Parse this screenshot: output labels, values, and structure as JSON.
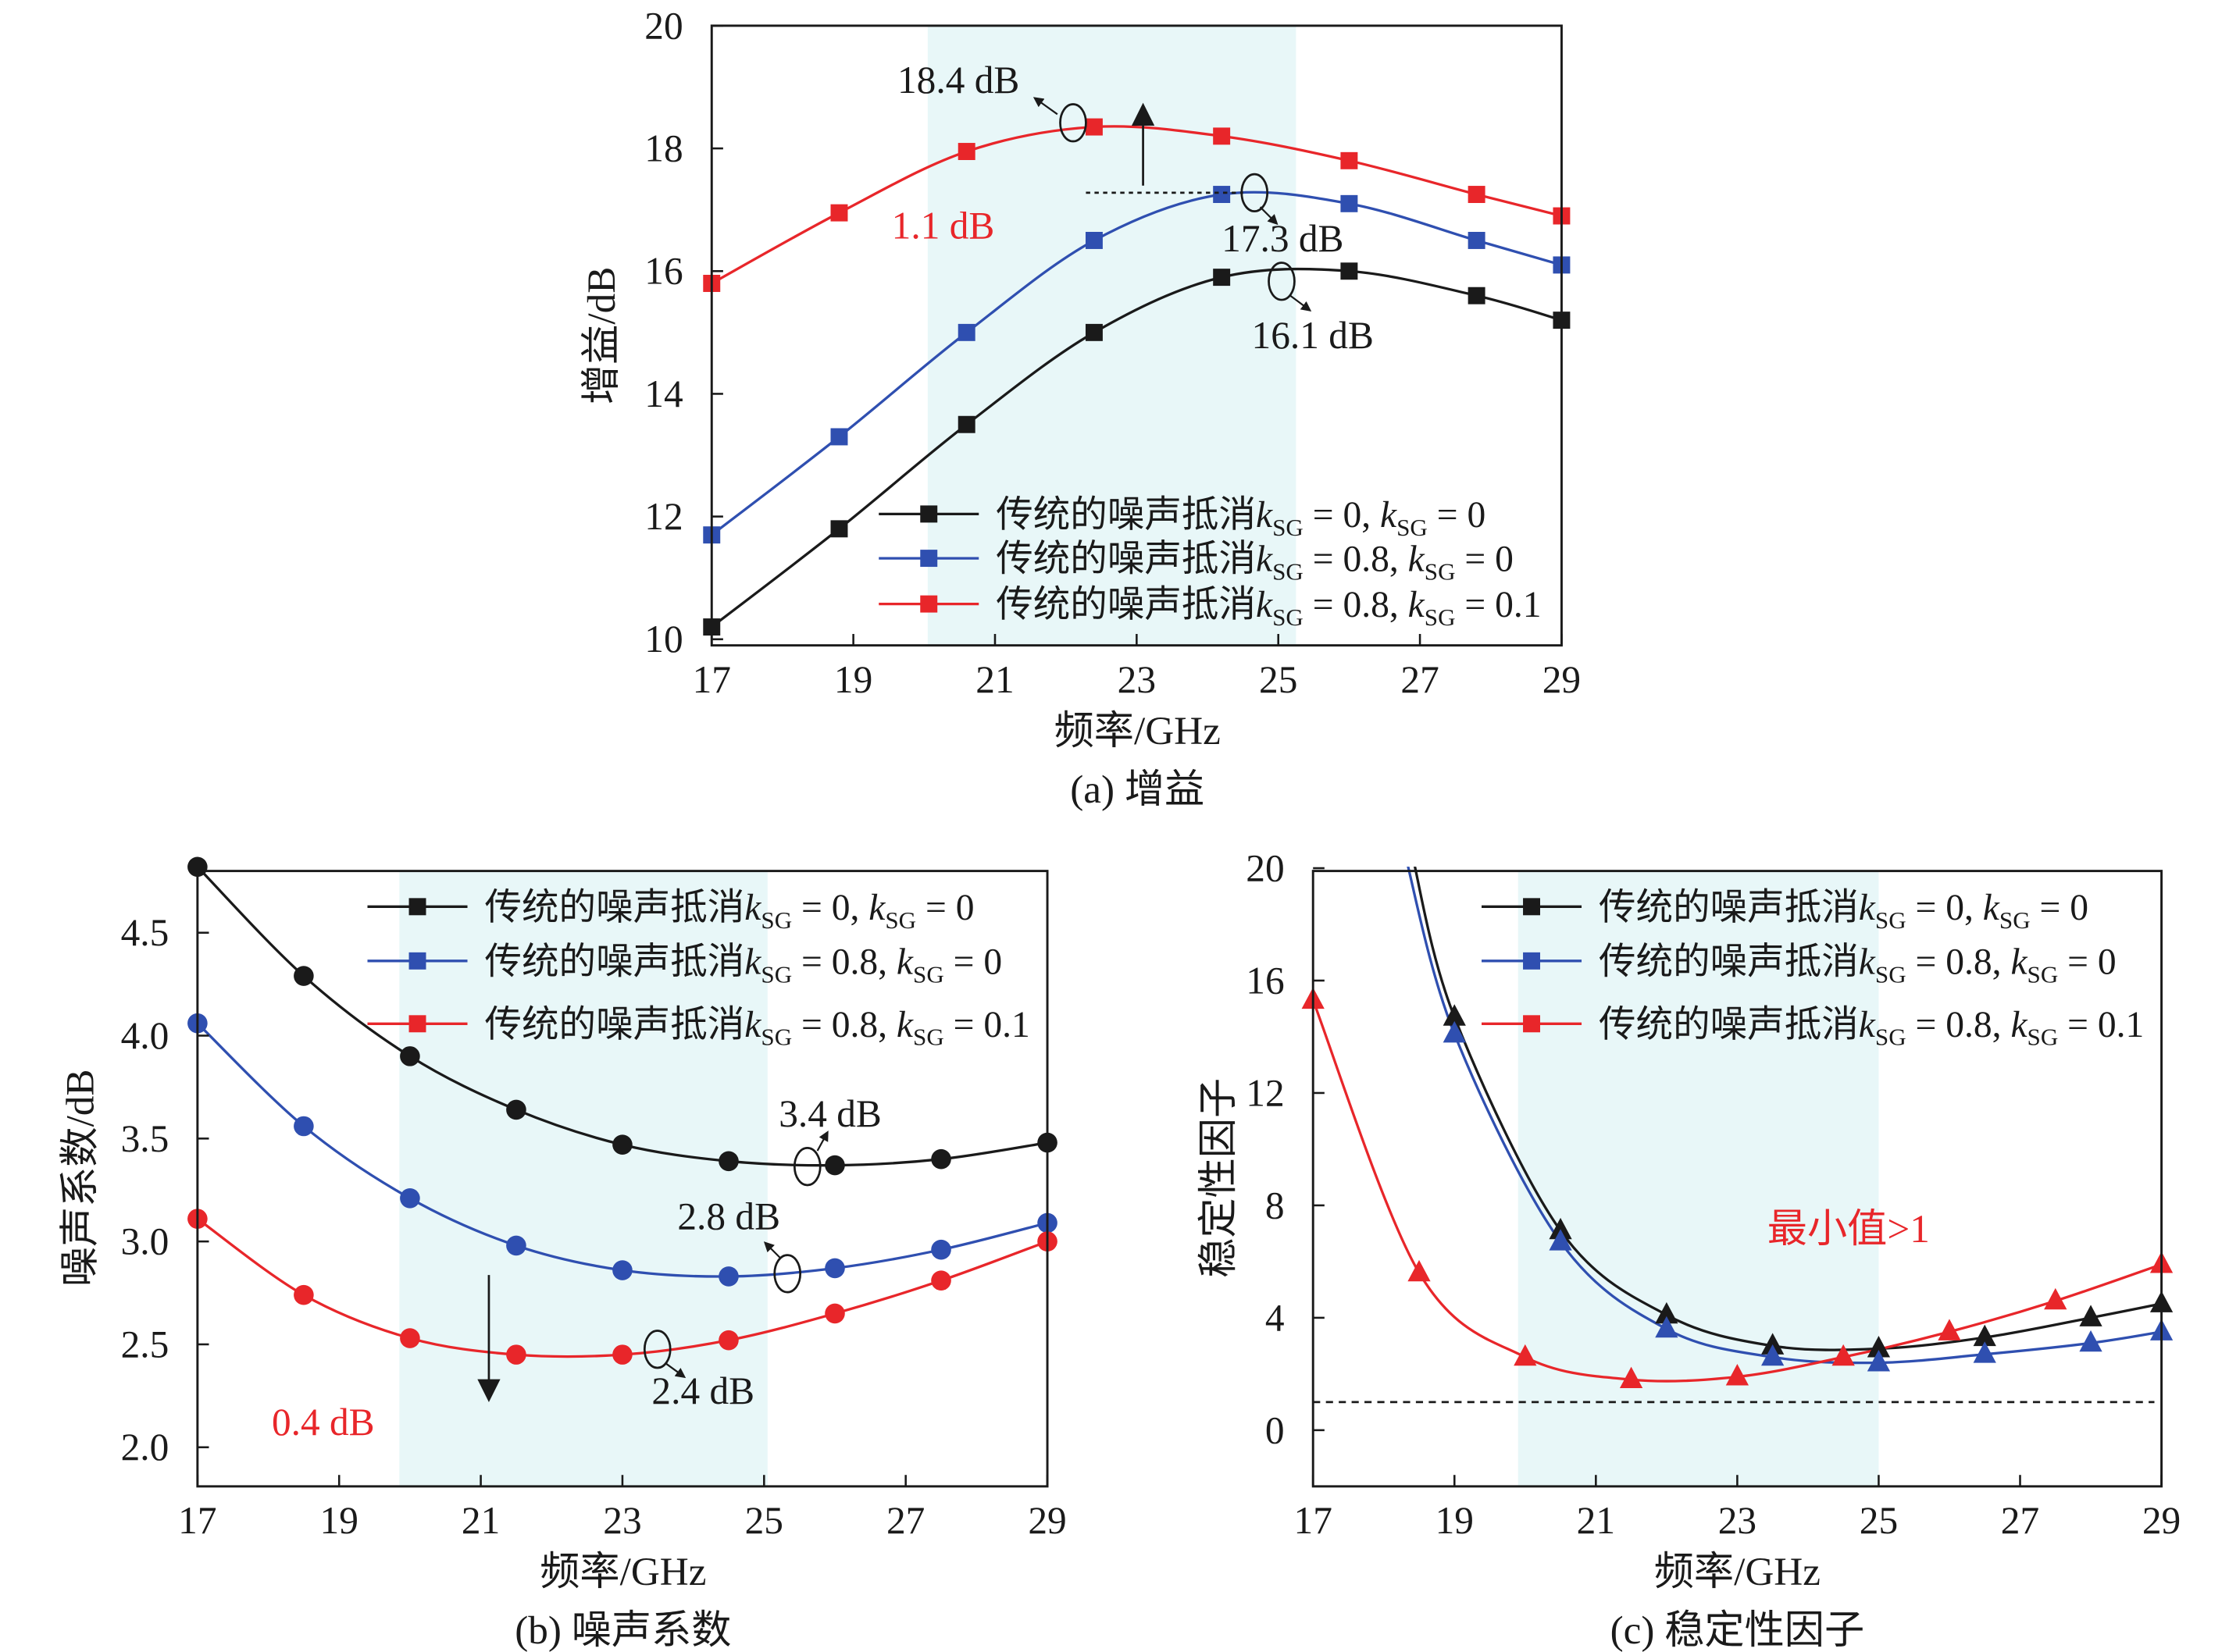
{
  "colors": {
    "black": "#1a1a1a",
    "blue": "#2f4fb0",
    "red": "#e8262a",
    "band": "#e8f7f8"
  },
  "legend": [
    {
      "prefix": "传统的噪声抵消",
      "k": "k",
      "sub": "SG",
      "v1": " = 0, ",
      "v2": " = 0"
    },
    {
      "prefix": "传统的噪声抵消",
      "k": "k",
      "sub": "SG",
      "v1": " = 0.8, ",
      "v2": " = 0"
    },
    {
      "prefix": "传统的噪声抵消",
      "k": "k",
      "sub": "SG",
      "v1": " = 0.8, ",
      "v2": " = 0.1"
    }
  ],
  "chart_data": [
    {
      "type": "line",
      "caption": "(a) 增益",
      "xlabel": "频率/GHz",
      "ylabel": "增益/dB",
      "xlim": [
        17,
        29
      ],
      "ylim": [
        9.9,
        20
      ],
      "xticks": [
        "17",
        "19",
        "21",
        "23",
        "25",
        "27",
        "29"
      ],
      "yticks": [
        "10",
        "12",
        "14",
        "16",
        "18",
        "20"
      ],
      "shaded_band": [
        20.05,
        25.25
      ],
      "marker": "square",
      "x": [
        17,
        18.8,
        20.6,
        22.4,
        24.2,
        26,
        27.8,
        29
      ],
      "series": [
        {
          "name": "kSG=0, kSG=0",
          "color": "black",
          "values": [
            10.2,
            11.8,
            13.5,
            15.0,
            15.9,
            16.0,
            15.6,
            15.2
          ]
        },
        {
          "name": "kSG=0.8, kSG=0",
          "color": "blue",
          "values": [
            11.7,
            13.3,
            15.0,
            16.5,
            17.25,
            17.1,
            16.5,
            16.1
          ]
        },
        {
          "name": "kSG=0.8, kSG=0.1",
          "color": "red",
          "values": [
            15.8,
            16.95,
            17.95,
            18.35,
            18.2,
            17.8,
            17.25,
            16.9
          ]
        }
      ],
      "annotations": {
        "peak_red": "18.4 dB",
        "peak_blue": "17.3 dB",
        "peak_black": "16.1 dB",
        "improvement": "1.1 dB"
      }
    },
    {
      "type": "line",
      "caption": "(b) 噪声系数",
      "xlabel": "频率/GHz",
      "ylabel": "噪声系数/dB",
      "xlim": [
        17,
        29
      ],
      "ylim": [
        1.81,
        4.8
      ],
      "xticks": [
        "17",
        "19",
        "21",
        "23",
        "25",
        "27",
        "29"
      ],
      "yticks": [
        "2.0",
        "2.5",
        "3.0",
        "3.5",
        "4.0",
        "4.5"
      ],
      "shaded_band": [
        19.85,
        25.05
      ],
      "marker": "circle",
      "x": [
        17,
        18.5,
        20,
        21.5,
        23,
        24.5,
        26,
        27.5,
        29
      ],
      "series": [
        {
          "name": "kSG=0, kSG=0",
          "color": "black",
          "values": [
            4.82,
            4.29,
            3.9,
            3.64,
            3.47,
            3.39,
            3.37,
            3.4,
            3.48
          ]
        },
        {
          "name": "kSG=0.8, kSG=0",
          "color": "blue",
          "values": [
            4.06,
            3.56,
            3.21,
            2.98,
            2.86,
            2.83,
            2.87,
            2.96,
            3.09
          ]
        },
        {
          "name": "kSG=0.8, kSG=0.1",
          "color": "red",
          "values": [
            3.11,
            2.74,
            2.53,
            2.45,
            2.45,
            2.52,
            2.65,
            2.81,
            3.0
          ]
        }
      ],
      "annotations": {
        "min_black": "3.4 dB",
        "min_blue": "2.8 dB",
        "min_red": "2.4 dB",
        "improvement": "0.4 dB"
      }
    },
    {
      "type": "line",
      "caption": "(c) 稳定性因子",
      "xlabel": "频率/GHz",
      "ylabel": "稳定性因子",
      "xlim": [
        17,
        29
      ],
      "ylim": [
        -2,
        19.9
      ],
      "xticks": [
        "17",
        "19",
        "21",
        "23",
        "25",
        "27",
        "29"
      ],
      "yticks": [
        "0",
        "4",
        "8",
        "12",
        "16",
        "20"
      ],
      "shaded_band": [
        19.9,
        25.0
      ],
      "marker": "triangle",
      "reference_line": 1,
      "series": [
        {
          "name": "kSG=0, kSG=0",
          "color": "black",
          "x": [
            19,
            20.5,
            22,
            23.5,
            25,
            26.5,
            28,
            29
          ],
          "values": [
            14.7,
            7.1,
            4.1,
            3.0,
            2.9,
            3.3,
            4.0,
            4.5
          ],
          "curve_start": [
            18.4,
            20.5
          ]
        },
        {
          "name": "kSG=0.8, kSG=0",
          "color": "blue",
          "x": [
            19,
            20.5,
            22,
            23.5,
            25,
            26.5,
            28,
            29
          ],
          "values": [
            14.1,
            6.7,
            3.6,
            2.6,
            2.4,
            2.7,
            3.1,
            3.5
          ],
          "curve_start": [
            18.3,
            20.5
          ]
        },
        {
          "name": "kSG=0.8, kSG=0.1",
          "color": "red",
          "x": [
            17,
            18.5,
            20,
            21.5,
            23,
            24.5,
            26,
            27.5,
            29
          ],
          "values": [
            15.3,
            5.6,
            2.6,
            1.8,
            1.9,
            2.6,
            3.5,
            4.6,
            5.9
          ]
        }
      ],
      "annotations": {
        "note": "最小值>1"
      }
    }
  ]
}
